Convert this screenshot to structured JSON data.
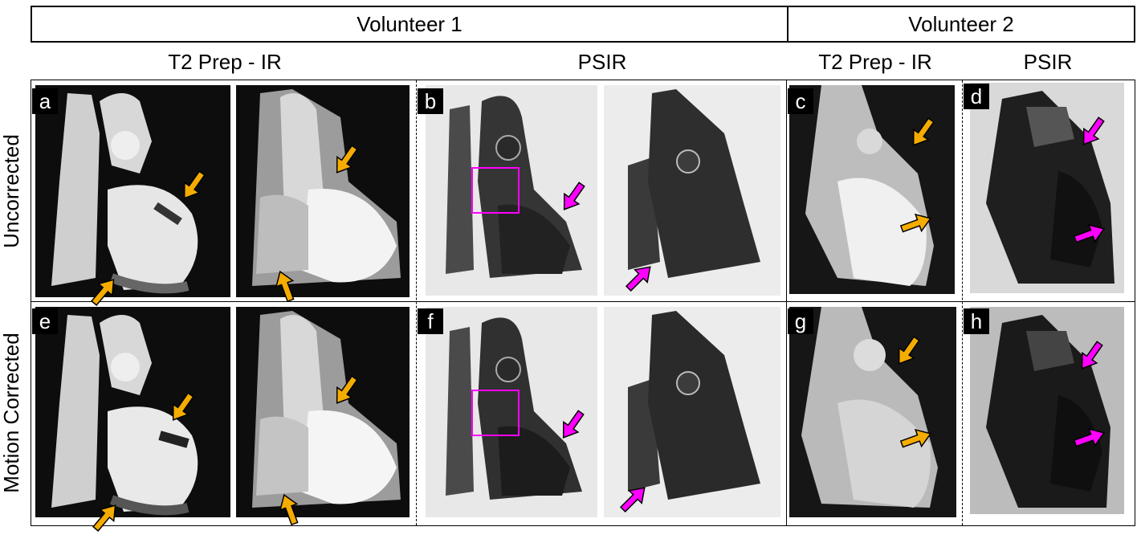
{
  "headers": {
    "volunteer1": "Volunteer 1",
    "volunteer2": "Volunteer 2"
  },
  "subheaders": {
    "v1_t2prep": "T2 Prep - IR",
    "v1_psir": "PSIR",
    "v2_t2prep": "T2 Prep - IR",
    "v2_psir": "PSIR"
  },
  "rows": {
    "top": "Uncorrected",
    "bottom": "Motion Corrected"
  },
  "panels": [
    "a",
    "b",
    "c",
    "d",
    "e",
    "f",
    "g",
    "h"
  ],
  "colors": {
    "t2prep_arrow": "#f5ac00",
    "psir_arrow": "#ff00ff",
    "roi_box": "#ff00ff"
  }
}
